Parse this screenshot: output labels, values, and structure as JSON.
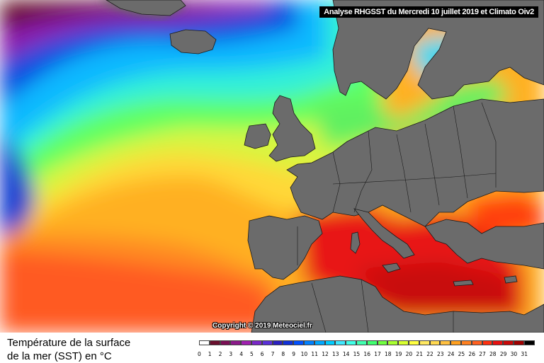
{
  "header": {
    "title": "Analyse RHGSST  du Mercredi 10 juillet 2019 et Climato Oiv2"
  },
  "copyright": "Copyright © 2019 Meteociel.fr",
  "legend": {
    "title_line1": "Température de la surface",
    "title_line2": "de la mer (SST) en °C",
    "ticks": [
      "0",
      "1",
      "2",
      "3",
      "4",
      "5",
      "6",
      "7",
      "8",
      "9",
      "10",
      "11",
      "12",
      "13",
      "14",
      "15",
      "16",
      "17",
      "18",
      "19",
      "20",
      "21",
      "22",
      "23",
      "24",
      "25",
      "26",
      "27",
      "28",
      "29",
      "30",
      "31"
    ],
    "colors": [
      "#ffffff",
      "#6a0f2e",
      "#7a0f55",
      "#8b1a8a",
      "#a020b0",
      "#7a28c8",
      "#5a30d8",
      "#2a20c0",
      "#1030d8",
      "#0050ff",
      "#0080ff",
      "#00a8ff",
      "#00ccff",
      "#40e8ff",
      "#40ffe8",
      "#40ffb0",
      "#40ff70",
      "#70ff40",
      "#a8ff30",
      "#d8ff30",
      "#ffff40",
      "#ffe860",
      "#ffd850",
      "#ffc040",
      "#ffa020",
      "#ff8020",
      "#ff6020",
      "#ff3010",
      "#e81010",
      "#c80808",
      "#a00000",
      "#000000"
    ]
  }
}
